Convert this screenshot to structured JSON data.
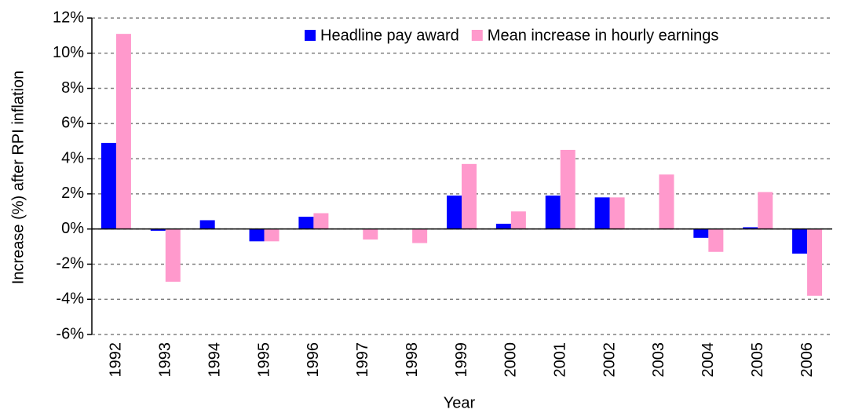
{
  "chart_data": {
    "type": "bar",
    "x_label": "Year",
    "y_label": "Increase (%) after RPI inflation",
    "categories": [
      "1992",
      "1993",
      "1994",
      "1995",
      "1996",
      "1997",
      "1998",
      "1999",
      "2000",
      "2001",
      "2002",
      "2003",
      "2004",
      "2005",
      "2006"
    ],
    "series": [
      {
        "name": "Headline pay award",
        "color": "#0000ff",
        "values": [
          4.9,
          -0.1,
          0.5,
          -0.7,
          0.7,
          0,
          0,
          1.9,
          0.3,
          1.9,
          1.8,
          0,
          -0.5,
          0.1,
          -1.4
        ]
      },
      {
        "name": "Mean increase in hourly earnings",
        "color": "#ff99cc",
        "values": [
          11.1,
          -3.0,
          0,
          -0.7,
          0.9,
          -0.6,
          -0.8,
          3.7,
          1.0,
          4.5,
          1.8,
          3.1,
          -1.3,
          2.1,
          -3.8
        ]
      }
    ],
    "ylim": [
      -6,
      12
    ],
    "yticks": [
      {
        "value": -6,
        "label": "-6%"
      },
      {
        "value": -4,
        "label": "-4%"
      },
      {
        "value": -2,
        "label": "-2%"
      },
      {
        "value": 0,
        "label": "0%"
      },
      {
        "value": 2,
        "label": "2%"
      },
      {
        "value": 4,
        "label": "4%"
      },
      {
        "value": 6,
        "label": "6%"
      },
      {
        "value": 8,
        "label": "8%"
      },
      {
        "value": 10,
        "label": "10%"
      },
      {
        "value": 12,
        "label": "12%"
      }
    ],
    "grid": true,
    "legend": "top-right"
  }
}
